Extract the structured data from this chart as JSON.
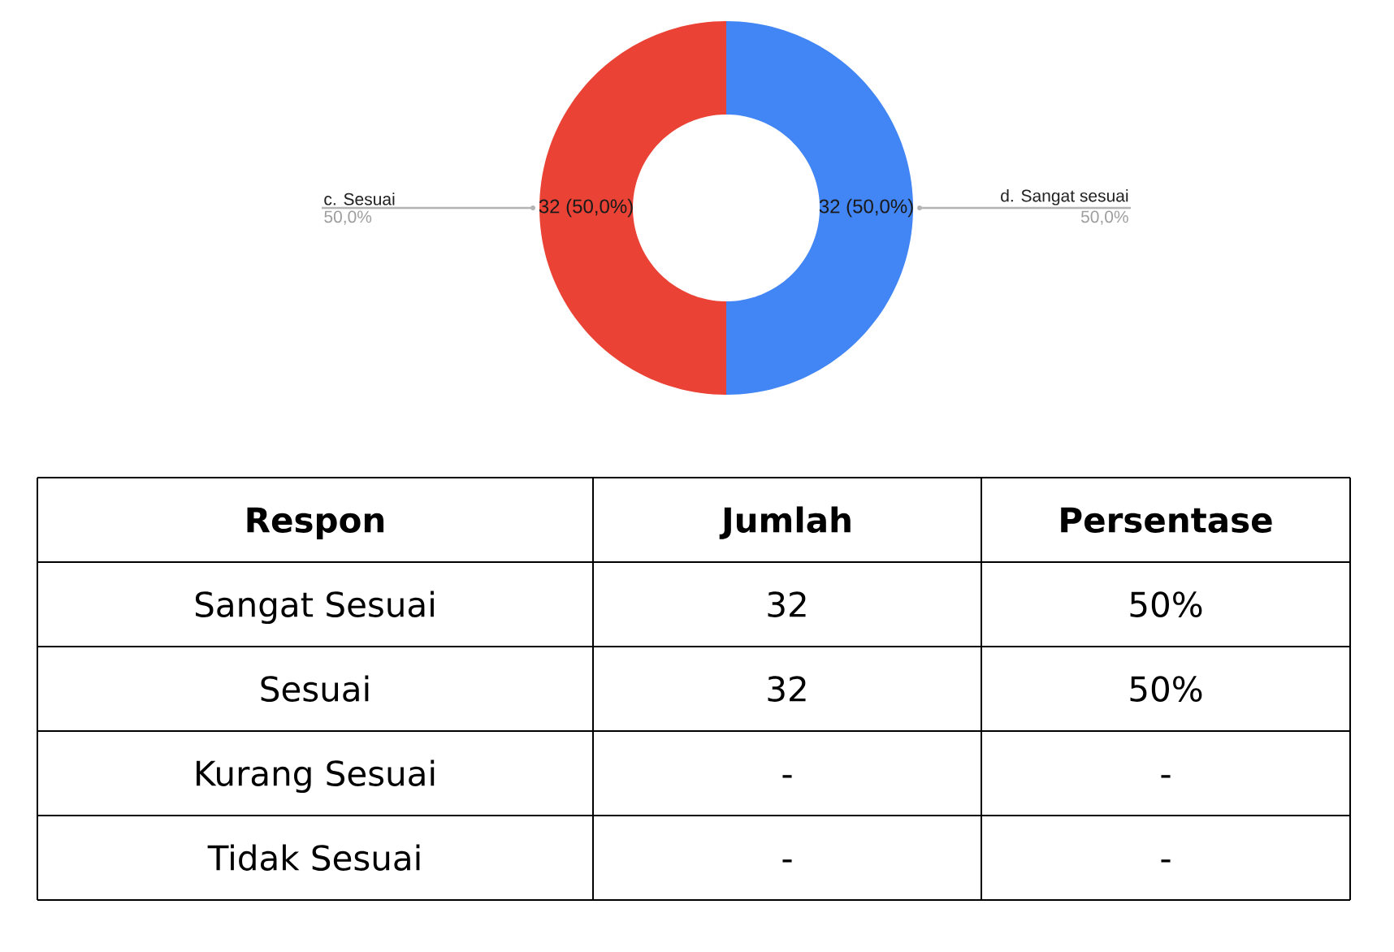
{
  "chart_data": [
    {
      "type": "donut",
      "categories": [
        "d. Sangat sesuai",
        "c. Sesuai"
      ],
      "values": [
        32,
        32
      ],
      "colors": [
        "#4285f4",
        "#ea4335"
      ],
      "value_labels": [
        "32 (50,0%)",
        "32 (50,0%)"
      ],
      "annotations": [
        "50,0%",
        "50,0%"
      ]
    },
    {
      "type": "other",
      "ylabel": "Respon",
      "categories": [
        "Jumlah",
        "Persentase"
      ],
      "y_categories": [
        "Sangat Sesuai",
        "Sesuai",
        "Kurang Sesuai",
        "Tidak Sesuai"
      ],
      "cell_labels": [
        [
          "32",
          "50%"
        ],
        [
          "32",
          "50%"
        ],
        [
          "-",
          "-"
        ],
        [
          "-",
          "-"
        ]
      ]
    }
  ]
}
